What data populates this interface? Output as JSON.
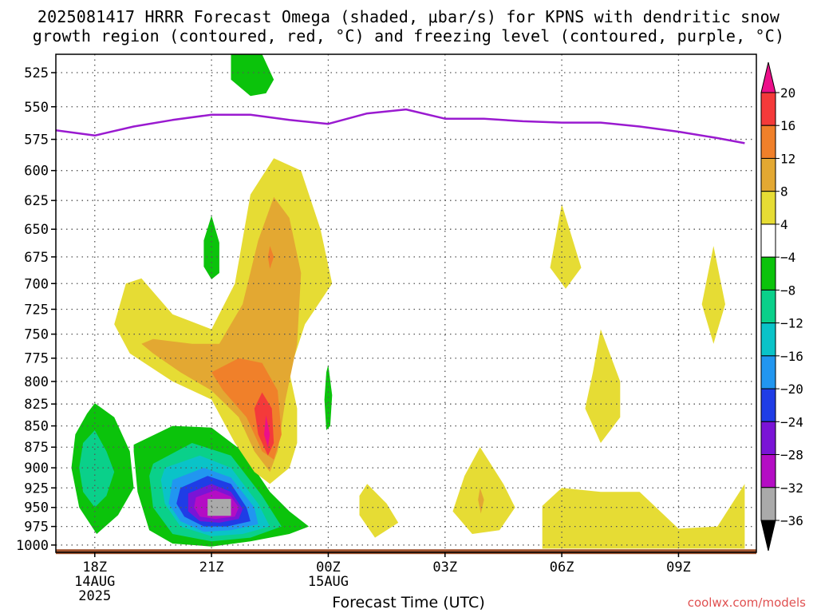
{
  "title_line1": "2025081417 HRRR Forecast Omega (shaded, μbar/s) for KPNS with dendritic snow",
  "title_line2": "growth region (contoured, red, °C) and freezing level (contoured, purple, °C)",
  "credit": "coolwx.com/models",
  "chart_data": {
    "type": "time-height contour",
    "title": "2025081417 HRRR Forecast Omega (shaded, μbar/s) for KPNS with dendritic snow growth region (contoured, red, °C) and freezing level (contoured, purple, °C)",
    "xlabel": "Forecast Time (UTC)",
    "ylabel": "",
    "x_ticks": [
      {
        "label": "18Z",
        "sub1": "14AUG",
        "sub2": "2025",
        "hour": 0
      },
      {
        "label": "21Z",
        "sub1": "",
        "sub2": "",
        "hour": 3
      },
      {
        "label": "00Z",
        "sub1": "15AUG",
        "sub2": "",
        "hour": 6
      },
      {
        "label": "03Z",
        "sub1": "",
        "sub2": "",
        "hour": 9
      },
      {
        "label": "06Z",
        "sub1": "",
        "sub2": "",
        "hour": 12
      },
      {
        "label": "09Z",
        "sub1": "",
        "sub2": "",
        "hour": 15
      }
    ],
    "x_range_hours": [
      -1,
      17
    ],
    "y_ticks": [
      525,
      550,
      575,
      600,
      625,
      650,
      675,
      700,
      725,
      750,
      775,
      800,
      825,
      850,
      875,
      900,
      925,
      950,
      975,
      1000
    ],
    "y_range_mb": [
      1010,
      512
    ],
    "y_scale": "log-pressure",
    "grid": true,
    "colorbar": {
      "levels": [
        20,
        16,
        12,
        8,
        4,
        -4,
        -8,
        -12,
        -16,
        -20,
        -24,
        -28,
        -32,
        -36
      ],
      "colors": [
        "#ec0f8a",
        "#f43a3a",
        "#f0802a",
        "#e3a832",
        "#e6dc34",
        "#ffffff",
        "#0bc30b",
        "#0ad08a",
        "#0ac3c8",
        "#2196f0",
        "#1f3de6",
        "#7a14d6",
        "#b40dc4",
        "#aaaaaa",
        "#000000"
      ]
    },
    "freezing_level": {
      "name": "Freezing level",
      "color": "#9a1ad0",
      "points": [
        {
          "hour": -1,
          "mb": 568
        },
        {
          "hour": 0,
          "mb": 572
        },
        {
          "hour": 1,
          "mb": 565
        },
        {
          "hour": 2,
          "mb": 560
        },
        {
          "hour": 3,
          "mb": 556
        },
        {
          "hour": 4,
          "mb": 556
        },
        {
          "hour": 5,
          "mb": 560
        },
        {
          "hour": 6,
          "mb": 563
        },
        {
          "hour": 7,
          "mb": 555
        },
        {
          "hour": 8,
          "mb": 552
        },
        {
          "hour": 9,
          "mb": 559
        },
        {
          "hour": 10,
          "mb": 559
        },
        {
          "hour": 11,
          "mb": 561
        },
        {
          "hour": 12,
          "mb": 562
        },
        {
          "hour": 13,
          "mb": 562
        },
        {
          "hour": 14,
          "mb": 565
        },
        {
          "hour": 15,
          "mb": 569
        },
        {
          "hour": 16,
          "mb": 574
        },
        {
          "hour": 16.7,
          "mb": 578
        }
      ]
    },
    "omega_regions": [
      {
        "name": "upper-green",
        "value": -6,
        "color": "#0bc30b",
        "points": [
          [
            3.5,
            512
          ],
          [
            4.3,
            512
          ],
          [
            4.6,
            530
          ],
          [
            4.4,
            540
          ],
          [
            4.0,
            542
          ],
          [
            3.5,
            530
          ]
        ]
      },
      {
        "name": "left-green-cell",
        "value": -6,
        "color": "#0bc30b",
        "points": [
          [
            0,
            824
          ],
          [
            0.5,
            840
          ],
          [
            0.9,
            880
          ],
          [
            1.0,
            925
          ],
          [
            0.6,
            960
          ],
          [
            0.05,
            985
          ],
          [
            -0.4,
            950
          ],
          [
            -0.6,
            900
          ],
          [
            -0.5,
            860
          ],
          [
            -0.2,
            836
          ]
        ]
      },
      {
        "name": "left-teal",
        "value": -10,
        "color": "#0ad08a",
        "points": [
          [
            0,
            855
          ],
          [
            0.3,
            880
          ],
          [
            0.5,
            905
          ],
          [
            0.3,
            935
          ],
          [
            0,
            950
          ],
          [
            -0.3,
            930
          ],
          [
            -0.4,
            900
          ],
          [
            -0.3,
            870
          ]
        ]
      },
      {
        "name": "main-green",
        "value": -6,
        "color": "#0bc30b",
        "points": [
          [
            1,
            872
          ],
          [
            2,
            850
          ],
          [
            3.0,
            852
          ],
          [
            3.8,
            880
          ],
          [
            4.5,
            930
          ],
          [
            5.0,
            955
          ],
          [
            5.5,
            975
          ],
          [
            5.0,
            985
          ],
          [
            4.0,
            995
          ],
          [
            3.0,
            1002
          ],
          [
            2.0,
            998
          ],
          [
            1.4,
            980
          ],
          [
            1.1,
            930
          ],
          [
            1.0,
            880
          ]
        ]
      },
      {
        "name": "main-teal",
        "value": -10,
        "color": "#0ad08a",
        "points": [
          [
            1.5,
            895
          ],
          [
            2.5,
            870
          ],
          [
            3.5,
            885
          ],
          [
            4.3,
            935
          ],
          [
            4.8,
            975
          ],
          [
            4.0,
            990
          ],
          [
            3.0,
            995
          ],
          [
            2.0,
            985
          ],
          [
            1.5,
            950
          ],
          [
            1.4,
            910
          ]
        ]
      },
      {
        "name": "main-cyan",
        "value": -14,
        "color": "#0ac3c8",
        "points": [
          [
            1.8,
            900
          ],
          [
            2.7,
            885
          ],
          [
            3.5,
            900
          ],
          [
            4.2,
            945
          ],
          [
            4.5,
            975
          ],
          [
            3.8,
            985
          ],
          [
            3.0,
            988
          ],
          [
            2.2,
            975
          ],
          [
            1.8,
            945
          ],
          [
            1.7,
            915
          ]
        ]
      },
      {
        "name": "main-blue",
        "value": -18,
        "color": "#2196f0",
        "points": [
          [
            2.0,
            915
          ],
          [
            2.8,
            900
          ],
          [
            3.5,
            912
          ],
          [
            4.1,
            950
          ],
          [
            4.2,
            972
          ],
          [
            3.5,
            980
          ],
          [
            2.8,
            982
          ],
          [
            2.2,
            968
          ],
          [
            1.9,
            945
          ]
        ]
      },
      {
        "name": "main-darkblue",
        "value": -22,
        "color": "#1f3de6",
        "points": [
          [
            2.2,
            925
          ],
          [
            2.9,
            910
          ],
          [
            3.5,
            920
          ],
          [
            3.9,
            950
          ],
          [
            4.0,
            968
          ],
          [
            3.4,
            975
          ],
          [
            2.8,
            975
          ],
          [
            2.3,
            962
          ],
          [
            2.1,
            945
          ]
        ]
      },
      {
        "name": "main-indigo",
        "value": -26,
        "color": "#7a14d6",
        "points": [
          [
            2.4,
            932
          ],
          [
            3.0,
            920
          ],
          [
            3.5,
            930
          ],
          [
            3.8,
            952
          ],
          [
            3.7,
            965
          ],
          [
            3.2,
            970
          ],
          [
            2.7,
            968
          ],
          [
            2.4,
            955
          ]
        ]
      },
      {
        "name": "main-purple",
        "value": -30,
        "color": "#b40dc4",
        "points": [
          [
            2.6,
            937
          ],
          [
            3.1,
            928
          ],
          [
            3.5,
            936
          ],
          [
            3.7,
            950
          ],
          [
            3.6,
            962
          ],
          [
            3.1,
            965
          ],
          [
            2.7,
            962
          ],
          [
            2.55,
            950
          ]
        ]
      },
      {
        "name": "main-gray",
        "value": -34,
        "color": "#aaaaaa",
        "points": [
          [
            2.9,
            939
          ],
          [
            3.5,
            939
          ],
          [
            3.5,
            961
          ],
          [
            2.9,
            961
          ]
        ]
      },
      {
        "name": "small-green-21z",
        "value": -6,
        "color": "#0bc30b",
        "points": [
          [
            3.0,
            638
          ],
          [
            3.2,
            662
          ],
          [
            3.2,
            690
          ],
          [
            3.0,
            696
          ],
          [
            2.8,
            684
          ],
          [
            2.8,
            660
          ]
        ]
      },
      {
        "name": "small-green-00z",
        "value": -6,
        "color": "#0bc30b",
        "points": [
          [
            6.0,
            782
          ],
          [
            6.1,
            815
          ],
          [
            6.05,
            850
          ],
          [
            5.95,
            855
          ],
          [
            5.9,
            820
          ],
          [
            5.95,
            790
          ]
        ]
      },
      {
        "name": "yellow-big",
        "value": 6,
        "color": "#e6dc34",
        "points": [
          [
            4.6,
            590
          ],
          [
            5.3,
            600
          ],
          [
            5.8,
            650
          ],
          [
            6.1,
            700
          ],
          [
            5.4,
            740
          ],
          [
            5.0,
            790
          ],
          [
            5.2,
            830
          ],
          [
            5.2,
            870
          ],
          [
            5.0,
            900
          ],
          [
            4.5,
            920
          ],
          [
            4.1,
            905
          ],
          [
            3.6,
            870
          ],
          [
            3.0,
            820
          ],
          [
            2.0,
            800
          ],
          [
            0.9,
            770
          ],
          [
            0.5,
            740
          ],
          [
            0.8,
            700
          ],
          [
            1.2,
            695
          ],
          [
            2.0,
            730
          ],
          [
            3.0,
            745
          ],
          [
            3.6,
            700
          ],
          [
            4.0,
            620
          ]
        ]
      },
      {
        "name": "orange-big",
        "value": 10,
        "color": "#e3a832",
        "points": [
          [
            4.6,
            622
          ],
          [
            5.0,
            640
          ],
          [
            5.3,
            690
          ],
          [
            5.2,
            760
          ],
          [
            4.9,
            820
          ],
          [
            4.7,
            880
          ],
          [
            4.5,
            905
          ],
          [
            4.1,
            880
          ],
          [
            3.7,
            840
          ],
          [
            3.0,
            810
          ],
          [
            2.2,
            790
          ],
          [
            1.5,
            770
          ],
          [
            1.2,
            760
          ],
          [
            1.5,
            755
          ],
          [
            2.5,
            760
          ],
          [
            3.2,
            760
          ],
          [
            3.8,
            720
          ],
          [
            4.2,
            660
          ]
        ]
      },
      {
        "name": "darkorange-big",
        "value": 14,
        "color": "#f0802a",
        "points": [
          [
            3.7,
            775
          ],
          [
            4.3,
            780
          ],
          [
            4.7,
            810
          ],
          [
            4.8,
            860
          ],
          [
            4.6,
            890
          ],
          [
            4.3,
            880
          ],
          [
            3.9,
            840
          ],
          [
            3.3,
            810
          ],
          [
            3.0,
            790
          ]
        ]
      },
      {
        "name": "red-core",
        "value": 18,
        "color": "#f43a3a",
        "points": [
          [
            4.3,
            812
          ],
          [
            4.55,
            830
          ],
          [
            4.6,
            870
          ],
          [
            4.45,
            885
          ],
          [
            4.2,
            860
          ],
          [
            4.1,
            830
          ]
        ]
      },
      {
        "name": "magenta-core",
        "value": 22,
        "color": "#ec0f8a",
        "points": [
          [
            4.4,
            838
          ],
          [
            4.5,
            860
          ],
          [
            4.45,
            875
          ],
          [
            4.35,
            860
          ]
        ]
      },
      {
        "name": "orange-675",
        "value": 10,
        "color": "#e3a832",
        "points": [
          [
            4.5,
            658
          ],
          [
            4.7,
            675
          ],
          [
            4.5,
            692
          ],
          [
            4.4,
            675
          ]
        ]
      },
      {
        "name": "darkorange-675",
        "value": 14,
        "color": "#f0802a",
        "points": [
          [
            4.5,
            665
          ],
          [
            4.6,
            675
          ],
          [
            4.5,
            686
          ],
          [
            4.45,
            675
          ]
        ]
      },
      {
        "name": "yellow-01z",
        "value": 6,
        "color": "#e6dc34",
        "points": [
          [
            7.0,
            920
          ],
          [
            7.5,
            945
          ],
          [
            7.8,
            970
          ],
          [
            7.2,
            990
          ],
          [
            6.8,
            960
          ],
          [
            6.8,
            935
          ]
        ]
      },
      {
        "name": "yellow-04z",
        "value": 6,
        "color": "#e6dc34",
        "points": [
          [
            9.9,
            875
          ],
          [
            10.5,
            920
          ],
          [
            10.8,
            950
          ],
          [
            10.4,
            980
          ],
          [
            9.7,
            985
          ],
          [
            9.2,
            955
          ],
          [
            9.5,
            910
          ]
        ]
      },
      {
        "name": "orange-04z",
        "value": 10,
        "color": "#e3a832",
        "points": [
          [
            9.9,
            925
          ],
          [
            10.0,
            940
          ],
          [
            9.92,
            958
          ],
          [
            9.85,
            940
          ]
        ]
      },
      {
        "name": "yellow-06z-upper",
        "value": 6,
        "color": "#e6dc34",
        "points": [
          [
            12.0,
            628
          ],
          [
            12.5,
            685
          ],
          [
            12.1,
            705
          ],
          [
            11.7,
            685
          ]
        ]
      },
      {
        "name": "yellow-07z",
        "value": 6,
        "color": "#e6dc34",
        "points": [
          [
            13.0,
            745
          ],
          [
            13.5,
            800
          ],
          [
            13.5,
            840
          ],
          [
            13.0,
            870
          ],
          [
            12.6,
            830
          ],
          [
            12.8,
            790
          ]
        ]
      },
      {
        "name": "yellow-10z",
        "value": 6,
        "color": "#e6dc34",
        "points": [
          [
            15.9,
            665
          ],
          [
            16.2,
            720
          ],
          [
            15.9,
            760
          ],
          [
            15.6,
            720
          ]
        ]
      },
      {
        "name": "yellow-low-right",
        "value": 6,
        "color": "#e6dc34",
        "points": [
          [
            11.5,
            948
          ],
          [
            12.0,
            925
          ],
          [
            13.0,
            930
          ],
          [
            14.0,
            930
          ],
          [
            15.0,
            978
          ],
          [
            16.0,
            975
          ],
          [
            16.7,
            920
          ],
          [
            16.7,
            1005
          ],
          [
            11.5,
            1005
          ]
        ]
      }
    ],
    "surface": {
      "name": "Surface",
      "color": "#a0522d",
      "mb": 1008
    }
  },
  "axis": {
    "xlabel": "Forecast Time (UTC)",
    "colorbar_labels": [
      "20",
      "16",
      "12",
      "8",
      "4",
      "−4",
      "−8",
      "−12",
      "−16",
      "−20",
      "−24",
      "−28",
      "−32",
      "−36"
    ]
  }
}
